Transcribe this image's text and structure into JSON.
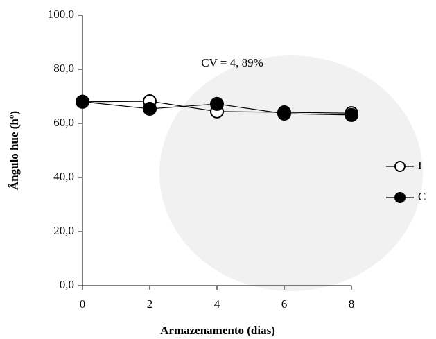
{
  "chart_data": {
    "type": "line",
    "x_label": "Armazenamento (dias)",
    "y_label": "Ângulo hue (hº)",
    "annotation": "CV = 4, 89%",
    "x": [
      0,
      2,
      4,
      6,
      8
    ],
    "xlim": [
      0,
      8
    ],
    "xticks": [
      0,
      2,
      4,
      6,
      8
    ],
    "ylim": [
      0,
      100
    ],
    "yticks": [
      {
        "value": 0,
        "label": "0,0"
      },
      {
        "value": 20,
        "label": "20,0"
      },
      {
        "value": 40,
        "label": "40,0"
      },
      {
        "value": 60,
        "label": "60,0"
      },
      {
        "value": 80,
        "label": "80,0"
      },
      {
        "value": 100,
        "label": "100,0"
      }
    ],
    "series": [
      {
        "name": "I",
        "color": "#000000",
        "marker": "open",
        "values": [
          68,
          68.2,
          64.4,
          64.1,
          63.8
        ]
      },
      {
        "name": "C",
        "color": "#000000",
        "marker": "filled",
        "values": [
          68,
          65.4,
          67.2,
          63.6,
          63.1
        ]
      }
    ]
  }
}
